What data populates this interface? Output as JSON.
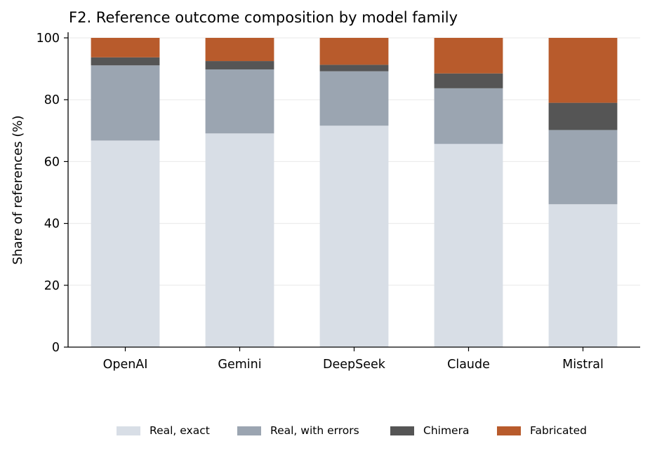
{
  "chart_data": {
    "type": "bar",
    "stacked": true,
    "title": "F2. Reference outcome composition by model family",
    "xlabel": "",
    "ylabel": "Share of references (%)",
    "ylim": [
      0,
      100
    ],
    "yticks": [
      "0",
      "20",
      "40",
      "60",
      "80",
      "100"
    ],
    "grid": "horizontal",
    "legend_position": "bottom",
    "categories": [
      "OpenAI",
      "Gemini",
      "DeepSeek",
      "Claude",
      "Mistral"
    ],
    "series": [
      {
        "name": "Real, exact",
        "color": "#d8dee6",
        "values": [
          66.8,
          69.1,
          71.6,
          65.7,
          46.2
        ]
      },
      {
        "name": "Real, with errors",
        "color": "#9ba5b1",
        "values": [
          24.3,
          20.7,
          17.6,
          18.0,
          24.0
        ]
      },
      {
        "name": "Chimera",
        "color": "#555555",
        "values": [
          2.6,
          2.7,
          2.1,
          4.8,
          8.8
        ]
      },
      {
        "name": "Fabricated",
        "color": "#b85b2c",
        "values": [
          6.3,
          7.5,
          8.7,
          11.5,
          21.0
        ]
      }
    ]
  }
}
